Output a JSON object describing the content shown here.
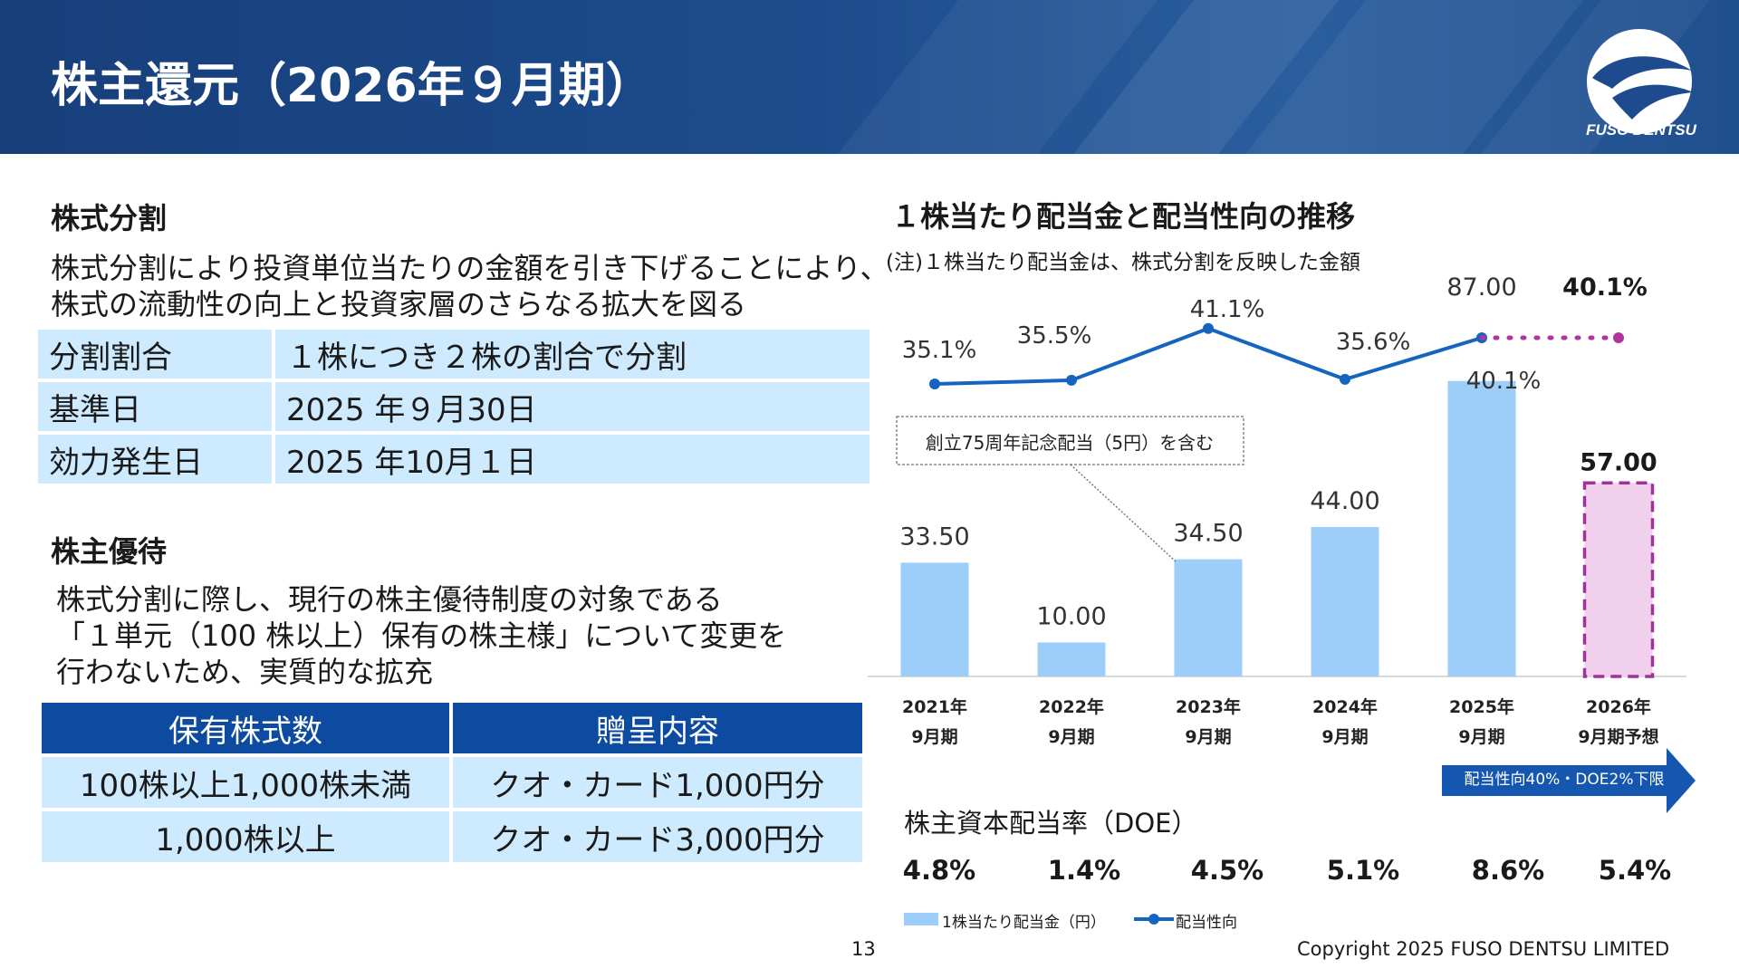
{
  "header": {
    "title": "株主還元（2026年９月期）",
    "logo_text": "FUSO DENTSU"
  },
  "split": {
    "title": "株式分割",
    "desc_lines": [
      "株式分割により投資単位当たりの金額を引き下げることにより、",
      "株式の流動性の向上と投資家層のさらなる拡大を図る"
    ],
    "rows": [
      {
        "label": "分割割合",
        "value": "１株につき２株の割合で分割"
      },
      {
        "label": "基準日",
        "value": "2025 年９月30日"
      },
      {
        "label": "効力発生日",
        "value": "2025 年10月１日"
      }
    ]
  },
  "perks": {
    "title": "株主優待",
    "desc_lines": [
      "株式分割に際し、現行の株主優待制度の対象である",
      "「１単元（100 株以上）保有の株主様」について変更を",
      "行わないため、実質的な拡充"
    ],
    "headers": [
      "保有株式数",
      "贈呈内容"
    ],
    "rows": [
      [
        "100株以上1,000株未満",
        "クオ・カード1,000円分"
      ],
      [
        "1,000株以上",
        "クオ・カード3,000円分"
      ]
    ]
  },
  "chart_data": {
    "type": "bar",
    "title": "１株当たり配当金と配当性向の推移",
    "note": "(注)１株当たり配当金は、株式分割を反映した金額",
    "categories": [
      [
        "2021年",
        "9月期"
      ],
      [
        "2022年",
        "9月期"
      ],
      [
        "2023年",
        "9月期"
      ],
      [
        "2024年",
        "9月期"
      ],
      [
        "2025年",
        "9月期"
      ],
      [
        "2026年",
        "9月期予想"
      ]
    ],
    "dividends": [
      33.5,
      10.0,
      34.5,
      44.0,
      87.0,
      57.0
    ],
    "dividend_labels": [
      "33.50",
      "10.00",
      "34.50",
      "44.00",
      "87.00",
      "57.00"
    ],
    "forecast_index": 5,
    "payout_ratio": [
      35.1,
      35.5,
      41.1,
      35.6,
      40.1,
      40.1
    ],
    "payout_labels": [
      "35.1%",
      "35.5%",
      "41.1%",
      "35.6%",
      "40.1%",
      "40.1%"
    ],
    "extra_label": "40.1%",
    "annotation": "創立75周年記念配当（5円）を含む",
    "policy_arrow": "配当性向40%・DOE2%下限",
    "doe_title": "株主資本配当率（DOE）",
    "doe": [
      "4.8%",
      "1.4%",
      "4.5%",
      "5.1%",
      "8.6%",
      "5.4%"
    ],
    "legend": [
      "1株当たり配当金（円）",
      "配当性向"
    ],
    "colors": {
      "bar": "#9dcdf9",
      "forecast_fill": "#f0d0ec",
      "forecast_border": "#a2319a",
      "line": "#1565c0",
      "forecast_line": "#b2339f"
    },
    "legend_placement": "bottom"
  },
  "footer": {
    "page": "13",
    "copyright": "Copyright 2025 FUSO DENTSU LIMITED"
  }
}
